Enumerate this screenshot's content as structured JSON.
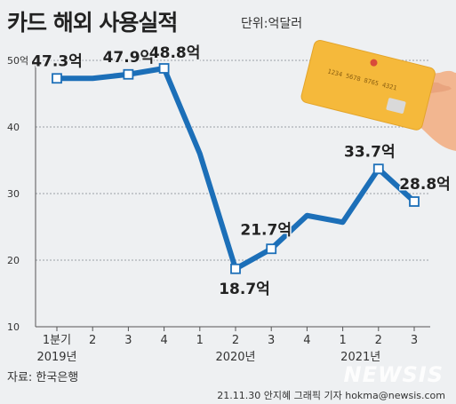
{
  "chart_data": {
    "type": "line",
    "title": "카드 해외 사용실적",
    "unit_label": "단위:억달러",
    "x_labels": [
      "1분기",
      "2",
      "3",
      "4",
      "1",
      "2",
      "3",
      "4",
      "1",
      "2",
      "3"
    ],
    "years": [
      {
        "label": "2019년",
        "center_index": 0
      },
      {
        "label": "2020년",
        "center_index": 5
      },
      {
        "label": "2021년",
        "center_index": 8.5
      }
    ],
    "series": [
      {
        "values": [
          47.3,
          47.3,
          47.9,
          48.8,
          36.0,
          18.7,
          21.7,
          26.7,
          25.7,
          33.7,
          28.8
        ]
      }
    ],
    "data_labels": [
      {
        "index": 0,
        "text": "47.3억"
      },
      {
        "index": 2,
        "text": "47.9억"
      },
      {
        "index": 3,
        "text": "48.8억"
      },
      {
        "index": 5,
        "text": "18.7억"
      },
      {
        "index": 6,
        "text": "21.7억"
      },
      {
        "index": 9,
        "text": "33.7억"
      },
      {
        "index": 10,
        "text": "28.8억"
      }
    ],
    "marker_indices": [
      0,
      2,
      3,
      5,
      6,
      9,
      10
    ],
    "y_ticks": [
      {
        "value": 10,
        "label": "10"
      },
      {
        "value": 20,
        "label": "20"
      },
      {
        "value": 30,
        "label": "30"
      },
      {
        "value": 40,
        "label": "40"
      },
      {
        "value": 50,
        "label": "50억"
      }
    ],
    "ylim": [
      10,
      50
    ],
    "grid": true,
    "line_color": "#1c6fb8",
    "card_number": "1234 5678 8765 4321"
  },
  "source": "자료: 한국은행",
  "credit": "21.11.30 안지혜 그래픽 기자 hokma@newsis.com",
  "watermark": "NEWSIS"
}
